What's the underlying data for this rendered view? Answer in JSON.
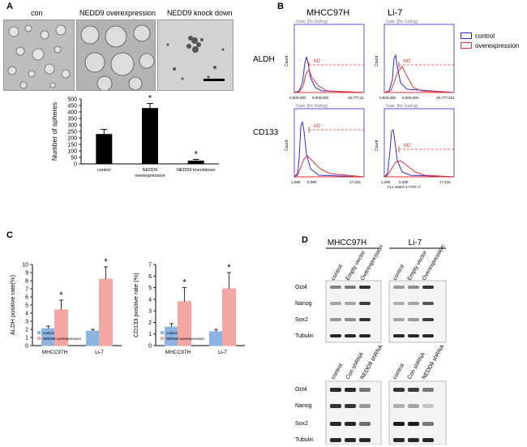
{
  "panels": {
    "a": "A",
    "b": "B",
    "c": "C",
    "d": "D"
  },
  "panel_a": {
    "micro_titles": [
      "con",
      "NEDD9 overexpression",
      "NEDD9 knock down"
    ]
  },
  "panel_b": {
    "col_titles": [
      "MHCC97H",
      "Li-7"
    ],
    "row_labels": [
      "ALDH",
      "CD133"
    ],
    "legend": [
      "control",
      "overexpression"
    ],
    "axis_y": "Count",
    "gate_text": "Gate: [No Gating]",
    "marker": "M2",
    "ticks_aldh_left": [
      "2,500,000",
      "5,000,000",
      "16,777,21"
    ],
    "ticks_aldh_right": [
      "2,500,000",
      "5,000,000",
      "16,777,215"
    ],
    "ticks_cd133_left": [
      "1,280",
      "5,080",
      "17,215"
    ],
    "ticks_cd133_right": [
      "1,280",
      "5,280",
      "17,215"
    ],
    "fl1_label": "FL1 SSEA-1 FITC-A"
  },
  "panel_d": {
    "top_groups": [
      "MHCC97H",
      "Li-7"
    ],
    "top_lanes": [
      "control",
      "Empty vector",
      "Overexpression"
    ],
    "bottom_lanes": [
      "control",
      "Con shRNA",
      "NEDD9 shRNA"
    ],
    "proteins": [
      "Oct4",
      "Nanog",
      "Sox2",
      "Tubulin"
    ]
  },
  "chart_data": [
    {
      "type": "bar",
      "title": "",
      "categories": [
        "control",
        "NEDD9 overexpression",
        "NEDD9 knockdown"
      ],
      "values": [
        230,
        430,
        25
      ],
      "errors": [
        35,
        35,
        10
      ],
      "significance": [
        "",
        "*",
        "*"
      ],
      "ylabel": "Number of spheres",
      "xlabel": "",
      "ylim": [
        0,
        500
      ],
      "yticks": [
        "0",
        "50",
        "100",
        "150",
        "200",
        "250",
        "300",
        "350",
        "400",
        "450",
        "500"
      ],
      "xtick_labels": [
        [
          "control"
        ],
        [
          "NEDD9",
          "overexpression"
        ],
        [
          "NEDD9 knockdown"
        ]
      ]
    },
    {
      "type": "bar",
      "title": "",
      "categories": [
        "MHCC97H",
        "Li-7"
      ],
      "series": [
        {
          "name": "control",
          "values": [
            2.1,
            1.8
          ],
          "errors": [
            0.3,
            0.2
          ]
        },
        {
          "name": "NEDD9 overexpression",
          "values": [
            4.4,
            8.2
          ],
          "errors": [
            1.2,
            1.5
          ]
        }
      ],
      "significance": [
        "*",
        "*"
      ],
      "ylabel": "ALDH positive rate(%)",
      "xlabel": "",
      "ylim": [
        0,
        10
      ],
      "yticks": [
        "0",
        "1",
        "2",
        "3",
        "4",
        "5",
        "6",
        "7",
        "8",
        "9",
        "10"
      ],
      "colors": {
        "control": "#8db4e2",
        "NEDD9 overexpression": "#f4a6a3"
      }
    },
    {
      "type": "bar",
      "title": "",
      "categories": [
        "MHCC97H",
        "Li-7"
      ],
      "series": [
        {
          "name": "control",
          "values": [
            1.6,
            1.2
          ],
          "errors": [
            0.3,
            0.2
          ]
        },
        {
          "name": "NEDD9 overexpression",
          "values": [
            3.8,
            4.9
          ],
          "errors": [
            1.2,
            1.4
          ]
        }
      ],
      "significance": [
        "*",
        "*"
      ],
      "ylabel": "CD133 positive rate (%)",
      "xlabel": "",
      "ylim": [
        0,
        7
      ],
      "yticks": [
        "0",
        "1",
        "2",
        "3",
        "4",
        "5",
        "6",
        "7"
      ],
      "colors": {
        "control": "#8db4e2",
        "NEDD9 overexpression": "#f4a6a3"
      }
    }
  ]
}
